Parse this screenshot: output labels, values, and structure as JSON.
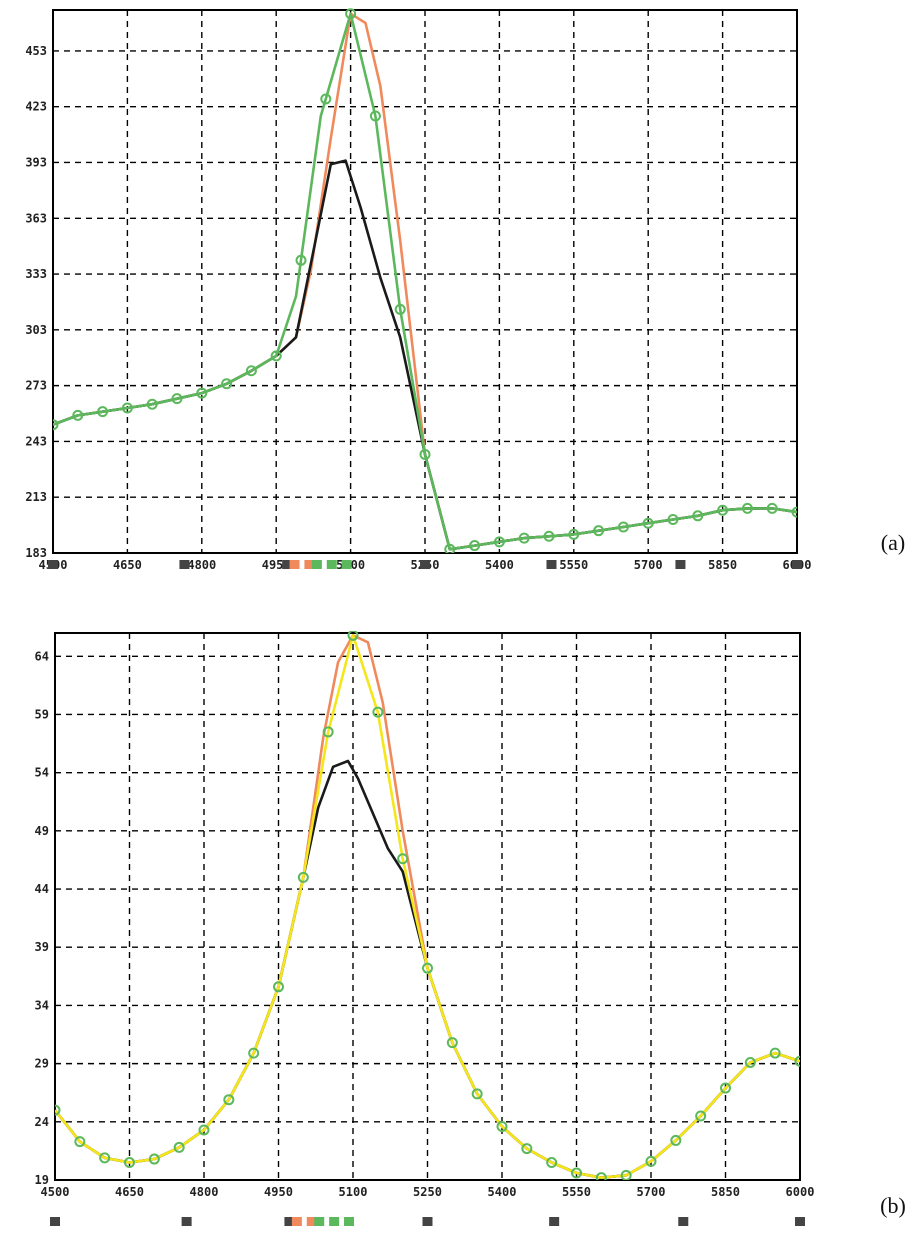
{
  "chart_data": [
    {
      "id": "a",
      "type": "line",
      "panel_label": "(a)",
      "x_ticks": [
        4500,
        4650,
        4800,
        4950,
        5100,
        5250,
        5400,
        5550,
        5700,
        5850,
        6000
      ],
      "y_ticks": [
        183,
        213,
        243,
        273,
        303,
        333,
        363,
        393,
        423,
        453
      ],
      "xlim": [
        4500,
        6000
      ],
      "ylim": [
        183,
        475
      ],
      "grid": true,
      "series": [
        {
          "color": "#f08a5d",
          "x": [
            4500,
            4550,
            4600,
            4650,
            4700,
            4750,
            4800,
            4850,
            4900,
            4950,
            4990,
            5020,
            5060,
            5100,
            5130,
            5160,
            5200,
            5250,
            5300,
            5350,
            5400,
            5450,
            5500,
            5550,
            5600,
            5650,
            5700,
            5750,
            5800,
            5850,
            5900,
            5950,
            6000
          ],
          "y": [
            252,
            257,
            259,
            261,
            263,
            266,
            269,
            274,
            281,
            289,
            299,
            335,
            406,
            473,
            468,
            434,
            351,
            236,
            185,
            187,
            189,
            191,
            192,
            193,
            195,
            197,
            199,
            201,
            203,
            206,
            207,
            207,
            205
          ]
        },
        {
          "color": "#1a1a1a",
          "x": [
            4500,
            4550,
            4600,
            4650,
            4700,
            4750,
            4800,
            4850,
            4900,
            4950,
            4990,
            5030,
            5060,
            5090,
            5120,
            5160,
            5200,
            5250,
            5300,
            5350,
            5400,
            5450,
            5500,
            5550,
            5600,
            5650,
            5700,
            5750,
            5800,
            5850,
            5900,
            5950,
            6000
          ],
          "y": [
            252,
            257,
            259,
            261,
            263,
            266,
            269,
            274,
            281,
            289,
            299,
            352,
            392,
            394,
            369,
            331,
            299,
            236,
            185,
            187,
            189,
            191,
            192,
            193,
            195,
            197,
            199,
            201,
            203,
            206,
            207,
            207,
            205
          ]
        },
        {
          "color": "#5cb85c",
          "marker": "circle",
          "x": [
            4500,
            4550,
            4600,
            4650,
            4700,
            4750,
            4800,
            4850,
            4900,
            4950,
            4990,
            5040,
            5100,
            5150,
            5200,
            5250,
            5300,
            5350,
            5400,
            5450,
            5500,
            5550,
            5600,
            5650,
            5700,
            5750,
            5800,
            5850,
            5900,
            5950,
            6000
          ],
          "y": [
            252,
            257,
            259,
            261,
            263,
            266,
            269,
            274,
            281,
            289,
            321,
            418,
            473,
            418,
            314,
            236,
            185,
            187,
            189,
            191,
            192,
            193,
            195,
            197,
            199,
            201,
            203,
            206,
            207,
            207,
            205
          ]
        }
      ],
      "marker_x": [
        4500,
        4550,
        4600,
        4650,
        4700,
        4750,
        4800,
        4850,
        4900,
        4950,
        5000,
        5050,
        5100,
        5150,
        5200,
        5250,
        5300,
        5350,
        5400,
        5450,
        5500,
        5550,
        5600,
        5650,
        5700,
        5750,
        5800,
        5850,
        5900,
        5950,
        6000
      ],
      "legend_squares": [
        {
          "x": 4500,
          "color": "#444444"
        },
        {
          "x": 4765,
          "color": "#444444"
        },
        {
          "x": 4972,
          "color": "#444444"
        },
        {
          "x": 4987,
          "color": "#f08a5d"
        },
        {
          "x": 5017,
          "color": "#f08a5d"
        },
        {
          "x": 5032,
          "color": "#5cb85c"
        },
        {
          "x": 5062,
          "color": "#5cb85c"
        },
        {
          "x": 5092,
          "color": "#5cb85c"
        },
        {
          "x": 5250,
          "color": "#444444"
        },
        {
          "x": 5505,
          "color": "#444444"
        },
        {
          "x": 5765,
          "color": "#444444"
        },
        {
          "x": 6000,
          "color": "#444444"
        }
      ]
    },
    {
      "id": "b",
      "type": "line",
      "panel_label": "(b)",
      "x_ticks": [
        4500,
        4650,
        4800,
        4950,
        5100,
        5250,
        5400,
        5550,
        5700,
        5850,
        6000
      ],
      "y_ticks": [
        19,
        24,
        29,
        34,
        39,
        44,
        49,
        54,
        59,
        64
      ],
      "xlim": [
        4500,
        6000
      ],
      "ylim": [
        19,
        66
      ],
      "grid": true,
      "series": [
        {
          "color": "#f08a5d",
          "x": [
            4500,
            4550,
            4600,
            4650,
            4700,
            4750,
            4800,
            4850,
            4900,
            4950,
            5000,
            5040,
            5070,
            5100,
            5130,
            5160,
            5200,
            5250,
            5300,
            5350,
            5400,
            5450,
            5500,
            5550,
            5600,
            5650,
            5700,
            5750,
            5800,
            5850,
            5900,
            5950,
            6000
          ],
          "y": [
            25,
            22.3,
            20.9,
            20.5,
            20.8,
            21.8,
            23.3,
            25.9,
            29.9,
            35.6,
            45.0,
            57.0,
            63.5,
            65.8,
            65.2,
            60.0,
            49.0,
            37.2,
            30.8,
            26.4,
            23.6,
            21.7,
            20.5,
            19.6,
            19.2,
            19.4,
            20.6,
            22.4,
            24.5,
            26.9,
            29.1,
            29.9,
            29.2
          ]
        },
        {
          "color": "#1a1a1a",
          "x": [
            4500,
            4550,
            4600,
            4650,
            4700,
            4750,
            4800,
            4850,
            4900,
            4950,
            5000,
            5030,
            5060,
            5090,
            5110,
            5140,
            5170,
            5200,
            5250,
            5300,
            5350,
            5400,
            5450,
            5500,
            5550,
            5600,
            5650,
            5700,
            5750,
            5800,
            5850,
            5900,
            5950,
            6000
          ],
          "y": [
            25,
            22.3,
            20.9,
            20.5,
            20.8,
            21.8,
            23.3,
            25.9,
            29.9,
            35.6,
            45.0,
            51.0,
            54.5,
            55.0,
            53.5,
            50.5,
            47.5,
            45.5,
            37.2,
            30.8,
            26.4,
            23.6,
            21.7,
            20.5,
            19.6,
            19.2,
            19.4,
            20.6,
            22.4,
            24.5,
            26.9,
            29.1,
            29.9,
            29.2
          ]
        },
        {
          "color": "#f5e61a",
          "x": [
            4500,
            4550,
            4600,
            4650,
            4700,
            4750,
            4800,
            4850,
            4900,
            4950,
            5000,
            5050,
            5100,
            5150,
            5200,
            5250,
            5300,
            5350,
            5400,
            5450,
            5500,
            5550,
            5600,
            5650,
            5700,
            5750,
            5800,
            5850,
            5900,
            5950,
            6000
          ],
          "y": [
            25,
            22.3,
            20.9,
            20.5,
            20.8,
            21.8,
            23.3,
            25.9,
            29.9,
            35.6,
            45.0,
            57.5,
            65.8,
            59.2,
            46.6,
            37.2,
            30.8,
            26.4,
            23.6,
            21.7,
            20.5,
            19.6,
            19.2,
            19.4,
            20.6,
            22.4,
            24.5,
            26.9,
            29.1,
            29.9,
            29.2
          ]
        }
      ],
      "marker_x": [
        4500,
        4550,
        4600,
        4650,
        4700,
        4750,
        4800,
        4850,
        4900,
        4950,
        5000,
        5050,
        5100,
        5150,
        5200,
        5250,
        5300,
        5350,
        5400,
        5450,
        5500,
        5550,
        5600,
        5650,
        5700,
        5750,
        5800,
        5850,
        5900,
        5950,
        6000
      ],
      "marker_color": "#5cb85c",
      "legend_squares": [
        {
          "x": 4500,
          "color": "#444444"
        },
        {
          "x": 4765,
          "color": "#444444"
        },
        {
          "x": 4972,
          "color": "#444444"
        },
        {
          "x": 4987,
          "color": "#f08a5d"
        },
        {
          "x": 5017,
          "color": "#f08a5d"
        },
        {
          "x": 5032,
          "color": "#5cb85c"
        },
        {
          "x": 5062,
          "color": "#5cb85c"
        },
        {
          "x": 5092,
          "color": "#5cb85c"
        },
        {
          "x": 5250,
          "color": "#444444"
        },
        {
          "x": 5505,
          "color": "#444444"
        },
        {
          "x": 5765,
          "color": "#444444"
        },
        {
          "x": 6000,
          "color": "#444444"
        }
      ]
    }
  ]
}
